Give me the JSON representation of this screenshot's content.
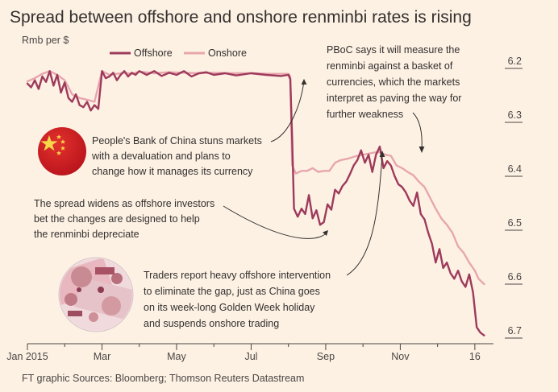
{
  "title": "Spread between offshore and onshore renminbi rates is rising",
  "ylabel": "Rmb per $",
  "source": "FT graphic  Sources: Bloomberg; Thomson Reuters Datastream",
  "colors": {
    "background": "#fdf1e4",
    "offshore": "#9e3a5b",
    "onshore": "#e8a6ad",
    "axis": "#4a4643"
  },
  "icons": [
    "china-flag-icon",
    "banknote-collage-icon"
  ],
  "annotations": {
    "pboc_basket": [
      "PBoC says it will measure the",
      "renminbi against a basket of",
      "currencies, which the markets",
      "interpret as paving the way for",
      "further weakness"
    ],
    "devaluation": [
      "People's Bank of China stuns markets",
      "with a devaluation and plans to",
      "change how it manages its currency"
    ],
    "spread": [
      "The spread widens as offshore investors",
      "bet the changes are designed to help",
      "the renminbi depreciate"
    ],
    "traders": [
      "Traders report heavy offshore intervention",
      "to eliminate the gap, just as China goes",
      "on its week-long Golden Week holiday",
      "and suspends onshore trading"
    ]
  },
  "chart_data": {
    "type": "line",
    "title": "Spread between offshore and onshore renminbi rates is rising",
    "ylabel": "Rmb per $",
    "y_axis_inverted": true,
    "ylim": [
      6.2,
      6.7
    ],
    "yticks": [
      6.2,
      6.3,
      6.4,
      6.5,
      6.6,
      6.7
    ],
    "xlim": [
      0,
      12.5
    ],
    "x_ticks": [
      {
        "label": "Jan 2015",
        "x": 0
      },
      {
        "label": "Mar",
        "x": 2
      },
      {
        "label": "May",
        "x": 4
      },
      {
        "label": "Jul",
        "x": 6
      },
      {
        "label": "Sep",
        "x": 8
      },
      {
        "label": "Nov",
        "x": 10
      },
      {
        "label": "16",
        "x": 12
      }
    ],
    "x_minor_ticks": [
      1,
      3,
      5,
      7,
      9,
      11
    ],
    "legend_position": "top-left",
    "series": [
      {
        "name": "Offshore",
        "points": [
          [
            0.0,
            6.228
          ],
          [
            0.1,
            6.235
          ],
          [
            0.2,
            6.222
          ],
          [
            0.3,
            6.238
          ],
          [
            0.4,
            6.215
          ],
          [
            0.5,
            6.225
          ],
          [
            0.6,
            6.205
          ],
          [
            0.7,
            6.232
          ],
          [
            0.8,
            6.212
          ],
          [
            0.9,
            6.245
          ],
          [
            1.0,
            6.226
          ],
          [
            1.1,
            6.255
          ],
          [
            1.2,
            6.262
          ],
          [
            1.3,
            6.248
          ],
          [
            1.4,
            6.268
          ],
          [
            1.5,
            6.272
          ],
          [
            1.6,
            6.262
          ],
          [
            1.7,
            6.278
          ],
          [
            1.8,
            6.268
          ],
          [
            1.9,
            6.275
          ],
          [
            2.0,
            6.205
          ],
          [
            2.1,
            6.218
          ],
          [
            2.2,
            6.215
          ],
          [
            2.3,
            6.208
          ],
          [
            2.4,
            6.222
          ],
          [
            2.5,
            6.212
          ],
          [
            2.6,
            6.205
          ],
          [
            2.7,
            6.215
          ],
          [
            2.8,
            6.208
          ],
          [
            2.9,
            6.212
          ],
          [
            3.0,
            6.205
          ],
          [
            3.2,
            6.212
          ],
          [
            3.4,
            6.205
          ],
          [
            3.6,
            6.214
          ],
          [
            3.8,
            6.208
          ],
          [
            4.0,
            6.212
          ],
          [
            4.2,
            6.205
          ],
          [
            4.4,
            6.215
          ],
          [
            4.6,
            6.209
          ],
          [
            4.8,
            6.207
          ],
          [
            5.0,
            6.212
          ],
          [
            5.3,
            6.209
          ],
          [
            5.6,
            6.213
          ],
          [
            6.0,
            6.209
          ],
          [
            6.4,
            6.212
          ],
          [
            6.8,
            6.214
          ],
          [
            7.0,
            6.212
          ],
          [
            7.05,
            6.22
          ],
          [
            7.1,
            6.33
          ],
          [
            7.15,
            6.46
          ],
          [
            7.25,
            6.475
          ],
          [
            7.35,
            6.46
          ],
          [
            7.45,
            6.47
          ],
          [
            7.55,
            6.435
          ],
          [
            7.65,
            6.478
          ],
          [
            7.75,
            6.463
          ],
          [
            7.85,
            6.49
          ],
          [
            7.95,
            6.485
          ],
          [
            8.05,
            6.452
          ],
          [
            8.15,
            6.462
          ],
          [
            8.25,
            6.425
          ],
          [
            8.35,
            6.432
          ],
          [
            8.45,
            6.418
          ],
          [
            8.55,
            6.41
          ],
          [
            8.65,
            6.396
          ],
          [
            8.75,
            6.38
          ],
          [
            8.85,
            6.37
          ],
          [
            8.95,
            6.352
          ],
          [
            9.05,
            6.375
          ],
          [
            9.15,
            6.36
          ],
          [
            9.25,
            6.392
          ],
          [
            9.35,
            6.36
          ],
          [
            9.45,
            6.345
          ],
          [
            9.55,
            6.385
          ],
          [
            9.65,
            6.372
          ],
          [
            9.75,
            6.38
          ],
          [
            9.85,
            6.4
          ],
          [
            9.95,
            6.415
          ],
          [
            10.05,
            6.42
          ],
          [
            10.15,
            6.43
          ],
          [
            10.25,
            6.445
          ],
          [
            10.35,
            6.455
          ],
          [
            10.45,
            6.43
          ],
          [
            10.55,
            6.47
          ],
          [
            10.65,
            6.48
          ],
          [
            10.75,
            6.505
          ],
          [
            10.85,
            6.525
          ],
          [
            10.95,
            6.56
          ],
          [
            11.05,
            6.535
          ],
          [
            11.15,
            6.57
          ],
          [
            11.25,
            6.56
          ],
          [
            11.35,
            6.58
          ],
          [
            11.45,
            6.59
          ],
          [
            11.55,
            6.575
          ],
          [
            11.65,
            6.595
          ],
          [
            11.75,
            6.605
          ],
          [
            11.85,
            6.582
          ],
          [
            11.95,
            6.615
          ],
          [
            12.05,
            6.68
          ],
          [
            12.15,
            6.69
          ],
          [
            12.25,
            6.695
          ]
        ]
      },
      {
        "name": "Onshore",
        "points": [
          [
            0.0,
            6.224
          ],
          [
            0.2,
            6.218
          ],
          [
            0.4,
            6.21
          ],
          [
            0.6,
            6.205
          ],
          [
            0.8,
            6.212
          ],
          [
            1.0,
            6.222
          ],
          [
            1.2,
            6.248
          ],
          [
            1.4,
            6.255
          ],
          [
            1.6,
            6.258
          ],
          [
            1.8,
            6.262
          ],
          [
            2.0,
            6.205
          ],
          [
            2.2,
            6.212
          ],
          [
            2.4,
            6.21
          ],
          [
            2.6,
            6.208
          ],
          [
            2.8,
            6.21
          ],
          [
            3.0,
            6.206
          ],
          [
            3.4,
            6.209
          ],
          [
            3.8,
            6.207
          ],
          [
            4.2,
            6.208
          ],
          [
            4.6,
            6.209
          ],
          [
            5.0,
            6.208
          ],
          [
            5.5,
            6.209
          ],
          [
            6.0,
            6.209
          ],
          [
            6.5,
            6.21
          ],
          [
            7.0,
            6.21
          ],
          [
            7.05,
            6.215
          ],
          [
            7.1,
            6.38
          ],
          [
            7.2,
            6.395
          ],
          [
            7.35,
            6.39
          ],
          [
            7.5,
            6.39
          ],
          [
            7.65,
            6.385
          ],
          [
            7.8,
            6.392
          ],
          [
            7.95,
            6.39
          ],
          [
            8.1,
            6.39
          ],
          [
            8.25,
            6.375
          ],
          [
            8.4,
            6.37
          ],
          [
            8.55,
            6.368
          ],
          [
            8.7,
            6.365
          ],
          [
            8.85,
            6.362
          ],
          [
            9.0,
            6.36
          ],
          [
            9.15,
            6.358
          ],
          [
            9.3,
            6.356
          ],
          [
            9.45,
            6.355
          ],
          [
            9.6,
            6.36
          ],
          [
            9.75,
            6.362
          ],
          [
            9.9,
            6.38
          ],
          [
            10.05,
            6.385
          ],
          [
            10.2,
            6.392
          ],
          [
            10.35,
            6.398
          ],
          [
            10.5,
            6.41
          ],
          [
            10.65,
            6.42
          ],
          [
            10.8,
            6.44
          ],
          [
            10.95,
            6.46
          ],
          [
            11.1,
            6.478
          ],
          [
            11.25,
            6.49
          ],
          [
            11.4,
            6.505
          ],
          [
            11.55,
            6.53
          ],
          [
            11.7,
            6.542
          ],
          [
            11.85,
            6.56
          ],
          [
            12.0,
            6.575
          ],
          [
            12.1,
            6.59
          ],
          [
            12.25,
            6.6
          ]
        ]
      }
    ]
  }
}
